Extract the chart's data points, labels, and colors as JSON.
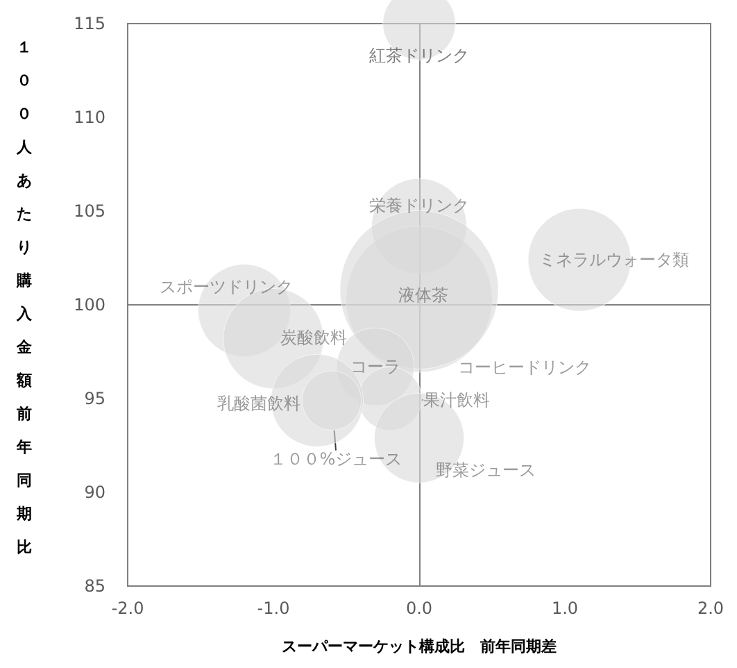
{
  "chart_data": {
    "type": "bubble",
    "xlabel": "スーパーマーケット構成比　前年同期差",
    "ylabel": "１００人あたり購入金額前年同期比",
    "xlim": [
      -2,
      2
    ],
    "xticks": [
      {
        "value": -2,
        "label": "-2.0"
      },
      {
        "value": -1,
        "label": "-1.0"
      },
      {
        "value": 0,
        "label": "0.0"
      },
      {
        "value": 1,
        "label": "1.0"
      },
      {
        "value": 2,
        "label": "2.0"
      }
    ],
    "ylim": [
      85,
      115
    ],
    "yticks": [
      85,
      90,
      95,
      100,
      105,
      110,
      115
    ],
    "grid": false,
    "legend": false,
    "ref_lines": [
      {
        "axis": "x",
        "value": 0,
        "color": "#808080"
      },
      {
        "axis": "y",
        "value": 100,
        "color": "#808080"
      }
    ],
    "series": [
      {
        "name": "紅茶ドリンク",
        "color": "#d9d9d9",
        "x": [
          0
        ],
        "values": [
          115
        ],
        "sizes": [
          0.21
        ]
      },
      {
        "name": "栄養ドリンク",
        "color": "#d9d9d9",
        "x": [
          0
        ],
        "values": [
          104.2
        ],
        "sizes": [
          0.36
        ]
      },
      {
        "name": "ミネラルウォータ類",
        "color": "#d9d9d9",
        "x": [
          1.1
        ],
        "values": [
          102.4
        ],
        "sizes": [
          0.42
        ]
      },
      {
        "name": "スポーツドリンク",
        "color": "#d9d9d9",
        "x": [
          -1.2
        ],
        "values": [
          99.7
        ],
        "sizes": [
          0.34
        ]
      },
      {
        "name": "液体茶",
        "color": "#d9d9d9",
        "x": [
          0
        ],
        "values": [
          100.3
        ],
        "sizes": [
          0.85
        ]
      },
      {
        "name": "コーヒードリンク",
        "color": "#d9d9d9",
        "x": [
          0
        ],
        "values": [
          100.8
        ],
        "sizes": [
          1
        ]
      },
      {
        "name": "炭酸飲料",
        "color": "#d9d9d9",
        "x": [
          -1.0
        ],
        "values": [
          98.2
        ],
        "sizes": [
          0.4
        ]
      },
      {
        "name": "コーラ",
        "color": "#d9d9d9",
        "x": [
          -0.3
        ],
        "values": [
          96.7
        ],
        "sizes": [
          0.24
        ]
      },
      {
        "name": "果汁飲料",
        "color": "#d9d9d9",
        "x": [
          -0.2
        ],
        "values": [
          95.0
        ],
        "sizes": [
          0.16
        ]
      },
      {
        "name": "乳酸菌飲料",
        "color": "#d9d9d9",
        "x": [
          -0.7
        ],
        "values": [
          94.9
        ],
        "sizes": [
          0.34
        ]
      },
      {
        "name": "１００%ジュース",
        "color": "#d9d9d9",
        "x": [
          -0.6
        ],
        "values": [
          94.9
        ],
        "sizes": [
          0.14
        ]
      },
      {
        "name": "野菜ジュース",
        "color": "#d9d9d9",
        "x": [
          0
        ],
        "values": [
          92.9
        ],
        "sizes": [
          0.32
        ]
      }
    ]
  }
}
